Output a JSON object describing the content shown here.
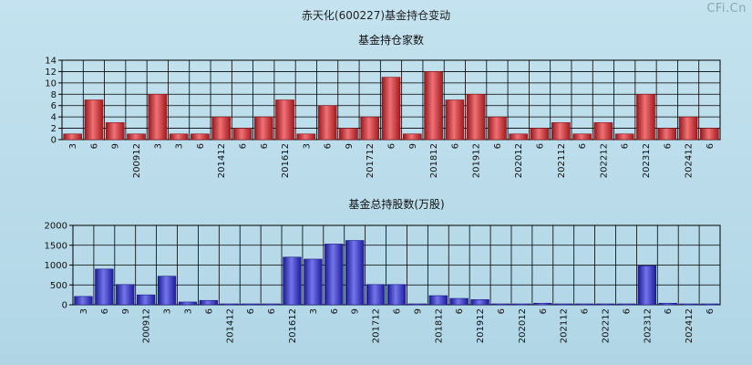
{
  "page": {
    "title": "赤天化(600227)基金持仓变动",
    "watermark": "CFi.Cn"
  },
  "chart_data": [
    {
      "type": "bar",
      "title": "基金持仓家数",
      "categories": [
        "3",
        "6",
        "9",
        "200912",
        "3",
        "3",
        "6",
        "201412",
        "6",
        "6",
        "201612",
        "3",
        "6",
        "9",
        "201712",
        "6",
        "9",
        "201812",
        "6",
        "201912",
        "6",
        "202012",
        "6",
        "202112",
        "6",
        "202212",
        "6",
        "202312",
        "6",
        "202412",
        "6"
      ],
      "values": [
        1,
        7,
        3,
        1,
        8,
        1,
        1,
        4,
        2,
        4,
        7,
        1,
        6,
        2,
        4,
        11,
        1,
        12,
        7,
        8,
        4,
        1,
        2,
        3,
        1,
        3,
        1,
        8,
        2,
        4,
        2
      ],
      "ylim": [
        0,
        14
      ],
      "yticks": [
        0,
        2,
        4,
        6,
        8,
        10,
        12,
        14
      ],
      "grid": true,
      "color": "#e8252b"
    },
    {
      "type": "bar",
      "title": "基金总持股数(万股)",
      "categories": [
        "3",
        "6",
        "9",
        "200912",
        "3",
        "3",
        "6",
        "201412",
        "6",
        "6",
        "201612",
        "3",
        "6",
        "9",
        "201712",
        "6",
        "9",
        "201812",
        "6",
        "201912",
        "6",
        "202012",
        "6",
        "202112",
        "6",
        "202212",
        "6",
        "202312",
        "6",
        "202412",
        "6"
      ],
      "values": [
        210,
        900,
        510,
        250,
        720,
        70,
        110,
        15,
        10,
        10,
        1200,
        1150,
        1530,
        1620,
        510,
        510,
        10,
        230,
        160,
        130,
        10,
        10,
        40,
        10,
        10,
        10,
        10,
        980,
        40,
        10,
        10
      ],
      "ylim": [
        0,
        2000
      ],
      "yticks": [
        0,
        500,
        1000,
        1500,
        2000
      ],
      "grid": true,
      "color": "#2a2ae0"
    }
  ]
}
